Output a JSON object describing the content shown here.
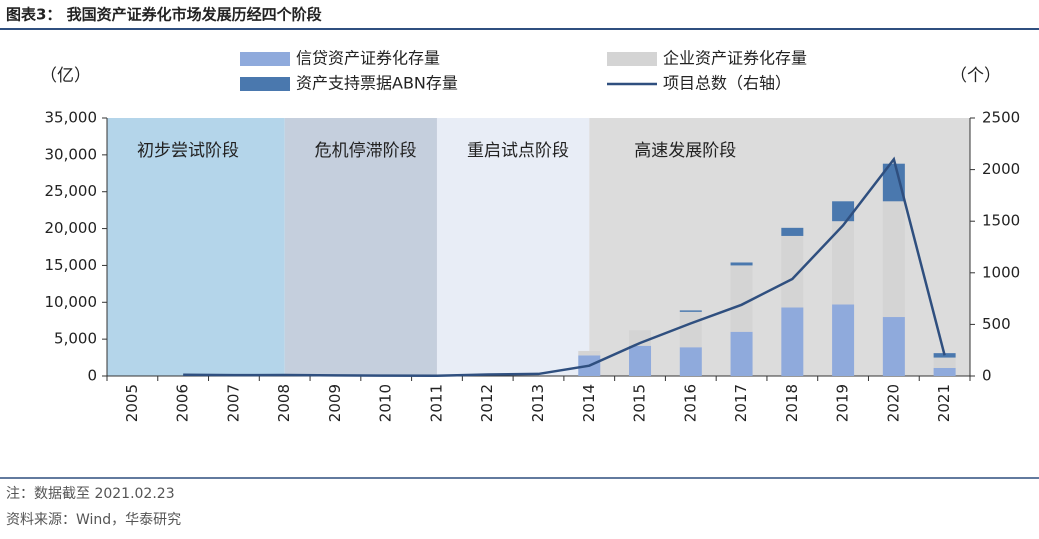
{
  "chart_data": {
    "type": "bar",
    "stacked": true,
    "title": "图表3： 我国资产证券化市场发展历经四个阶段",
    "y_unit": "（亿）",
    "y2_unit": "（个）",
    "note": "注：数据截至 2021.02.23",
    "source": "资料来源：Wind，华泰研究",
    "categories": [
      "2005",
      "2006",
      "2007",
      "2008",
      "2009",
      "2010",
      "2011",
      "2012",
      "2013",
      "2014",
      "2015",
      "2016",
      "2017",
      "2018",
      "2019",
      "2020",
      "2021"
    ],
    "phases": [
      {
        "label": "初步尝试阶段",
        "from": "2005",
        "to": "2008",
        "color": "#b4d5ea"
      },
      {
        "label": "危机停滞阶段",
        "from": "2008",
        "to": "2011",
        "color": "#c5cfdd"
      },
      {
        "label": "重启试点阶段",
        "from": "2011",
        "to": "2014",
        "color": "#e8edf6"
      },
      {
        "label": "高速发展阶段",
        "from": "2014",
        "to": "2021",
        "color": "#dcdcdc"
      }
    ],
    "series": [
      {
        "name": "信贷资产证券化存量",
        "color": "#8faadc",
        "values": [
          0,
          0,
          0,
          0,
          0,
          0,
          0,
          0,
          0,
          2800,
          4100,
          3900,
          6000,
          9300,
          9700,
          8000,
          1100
        ]
      },
      {
        "name": "企业资产证券化存量",
        "color": "#d4d4d4",
        "values": [
          0,
          0,
          0,
          0,
          0,
          0,
          0,
          0,
          0,
          600,
          2100,
          4800,
          9000,
          9700,
          11300,
          15700,
          1400
        ]
      },
      {
        "name": "资产支持票据ABN存量",
        "color": "#4a78ae",
        "values": [
          0,
          0,
          0,
          0,
          0,
          0,
          0,
          0,
          0,
          0,
          0,
          200,
          400,
          1100,
          2700,
          5100,
          600
        ]
      },
      {
        "name": "项目总数（右轴）",
        "type": "line",
        "axis": "y2",
        "color": "#2f4f7f",
        "values": [
          null,
          12,
          8,
          10,
          6,
          4,
          2,
          15,
          20,
          100,
          320,
          510,
          690,
          940,
          1460,
          2100,
          200
        ]
      }
    ],
    "ylim": [
      0,
      35000
    ],
    "yticks": [
      0,
      {
        "value": 5000,
        "label": "5,000"
      },
      {
        "value": 10000,
        "label": "10,000"
      },
      {
        "value": 15000,
        "label": "15,000"
      },
      {
        "value": 20000,
        "label": "20,000"
      },
      {
        "value": 25000,
        "label": "25,000"
      },
      {
        "value": 30000,
        "label": "30,000"
      },
      {
        "value": 35000,
        "label": "35,000"
      }
    ],
    "y2lim": [
      0,
      2500
    ],
    "y2ticks": [
      0,
      500,
      1000,
      1500,
      2000,
      2500
    ]
  }
}
